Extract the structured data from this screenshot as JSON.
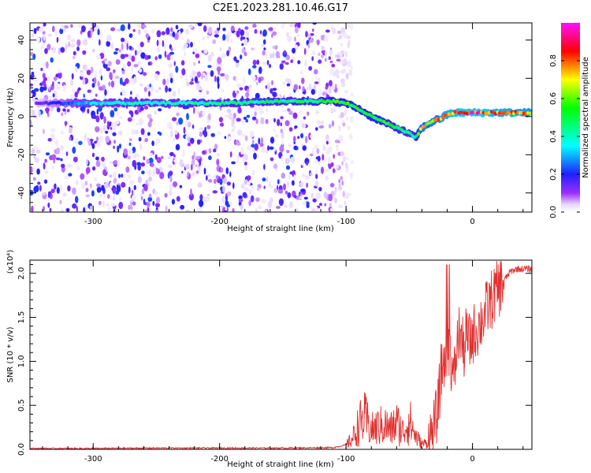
{
  "title": "C2E1.2023.281.10.46.G17",
  "chart_data": [
    {
      "type": "heatmap",
      "xlabel": "Height of straight line (km)",
      "ylabel": "Frequency (Hz)",
      "xlim": [
        -350,
        47
      ],
      "ylim": [
        -50,
        49
      ],
      "x_ticks": [
        -300,
        -200,
        -100,
        0
      ],
      "x_tick_labels": [
        "-300",
        "-200",
        "-100",
        "0"
      ],
      "y_ticks": [
        -40,
        -20,
        0,
        20,
        40
      ],
      "y_tick_labels": [
        "-40",
        "-20",
        "0",
        "20",
        "40"
      ],
      "colorbar": {
        "label": "Normalized spectral amplitude",
        "range": [
          0,
          1
        ],
        "ticks": [
          0.0,
          0.2,
          0.4,
          0.6,
          0.8
        ],
        "tick_labels": [
          "0.0",
          "0.2",
          "0.4",
          "0.6",
          "0.8"
        ],
        "colormap": "rainbow (white-violet-blue-cyan-green-yellow-red-magenta)"
      },
      "ridge": {
        "description": "Dominant signal frequency vs height",
        "x": [
          -350,
          -300,
          -250,
          -200,
          -150,
          -120,
          -110,
          -100,
          -90,
          -80,
          -70,
          -60,
          -50,
          -45,
          -40,
          -35,
          -30,
          -25,
          -20,
          -15,
          -10,
          0,
          10,
          20,
          30,
          47
        ],
        "y": [
          7,
          7,
          7,
          7,
          8,
          8,
          8,
          7,
          4,
          0,
          -3,
          -6,
          -9,
          -11,
          -6,
          -4,
          -2,
          -1,
          1,
          2,
          2,
          2,
          2,
          2,
          2,
          2
        ],
        "amplitude": [
          0.1,
          0.35,
          0.4,
          0.45,
          0.45,
          0.5,
          0.55,
          0.55,
          0.55,
          0.55,
          0.55,
          0.5,
          0.45,
          0.5,
          0.75,
          0.7,
          0.75,
          0.8,
          0.85,
          0.85,
          0.9,
          0.9,
          0.9,
          0.85,
          0.85,
          0.8
        ]
      },
      "noise_extent_x": [
        -350,
        -110
      ]
    },
    {
      "type": "line",
      "xlabel": "Height of straight line (km)",
      "ylabel": "SNR (10 * v/v)",
      "y_multiplier": "(x10⁴)",
      "xlim": [
        -350,
        47
      ],
      "ylim": [
        0,
        2.15
      ],
      "x_ticks": [
        -300,
        -200,
        -100,
        0
      ],
      "x_tick_labels": [
        "-300",
        "-200",
        "-100",
        "0"
      ],
      "y_ticks": [
        0.0,
        0.5,
        1.0,
        1.5,
        2.0
      ],
      "y_tick_labels": [
        "0.0",
        "0.5",
        "1.0",
        "1.5",
        "2.0"
      ],
      "series": [
        {
          "color": "#e03030",
          "x": [
            -350,
            -300,
            -250,
            -200,
            -150,
            -110,
            -100,
            -95,
            -90,
            -85,
            -80,
            -75,
            -70,
            -65,
            -60,
            -55,
            -50,
            -45,
            -40,
            -35,
            -30,
            -27,
            -25,
            -22,
            -20,
            -18,
            -15,
            -12,
            -10,
            -7,
            -5,
            -2,
            0,
            5,
            10,
            15,
            20,
            25,
            30,
            35,
            40,
            47
          ],
          "y": [
            0.01,
            0.01,
            0.015,
            0.015,
            0.015,
            0.02,
            0.05,
            0.12,
            0.28,
            0.35,
            0.22,
            0.25,
            0.28,
            0.22,
            0.3,
            0.2,
            0.33,
            0.15,
            0.06,
            0.08,
            0.25,
            0.5,
            0.85,
            1.05,
            1.2,
            1.15,
            0.75,
            1.2,
            1.35,
            1.1,
            1.3,
            1.2,
            1.3,
            1.4,
            1.55,
            1.7,
            1.82,
            1.92,
            2.02,
            2.05,
            2.05,
            2.05
          ]
        }
      ]
    }
  ]
}
